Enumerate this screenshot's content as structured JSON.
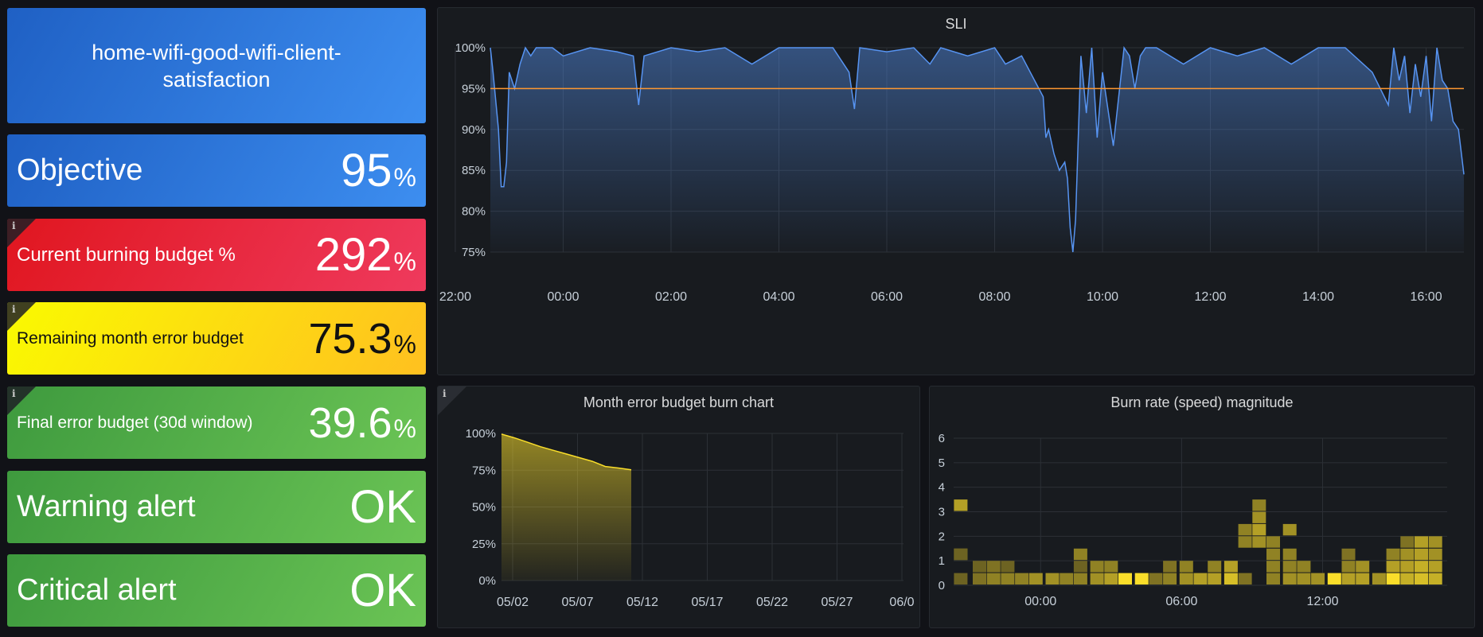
{
  "title_panel": {
    "text": "home-wifi-good-wifi-client-satisfaction"
  },
  "stats": {
    "objective": {
      "label": "Objective",
      "value": "95",
      "unit": "%"
    },
    "burning": {
      "label": "Current burning budget %",
      "value": "292",
      "unit": "%",
      "info": "i"
    },
    "remaining": {
      "label": "Remaining month error budget",
      "value": "75.3",
      "unit": "%",
      "info": "i"
    },
    "final": {
      "label": "Final error budget (30d window)",
      "value": "39.6",
      "unit": "%",
      "info": "i"
    },
    "warning": {
      "label": "Warning alert",
      "value": "OK"
    },
    "critical": {
      "label": "Critical alert",
      "value": "OK"
    }
  },
  "colors": {
    "blue_stat": "#3d8ef0",
    "red_stat": "#e0161f",
    "yellow_stat": "#fafa00",
    "green_stat": "#56a64b",
    "sli_line": "#5794f2",
    "objective_line": "#ff9830",
    "budget_line": "#fade2a",
    "heat_bright": "#fade2a",
    "heat_dim": "#504a22"
  },
  "panel_titles": {
    "sli": "SLI",
    "burn_chart": "Month error budget burn chart",
    "burn_rate": "Burn rate (speed) magnitude"
  },
  "burn_chart_info": "i",
  "chart_data": [
    {
      "type": "line",
      "title": "SLI",
      "x_ticks": [
        "22:00",
        "00:00",
        "02:00",
        "04:00",
        "06:00",
        "08:00",
        "10:00",
        "12:00",
        "14:00",
        "16:00"
      ],
      "y_ticks": [
        "100%",
        "95%",
        "90%",
        "85%",
        "80%",
        "75%"
      ],
      "ylim": [
        75,
        100
      ],
      "threshold": {
        "value": 95
      },
      "series": [
        {
          "x": [
            -1.35,
            -1.3,
            -1.2,
            -1.15,
            -1.1,
            -1.05,
            -1.0,
            -0.9,
            -0.8,
            -0.7,
            -0.6,
            -0.5,
            -0.2,
            0.0,
            0.5,
            1.0,
            1.3,
            1.4,
            1.5,
            2.0,
            2.5,
            3.0,
            3.5,
            4.0,
            5.0,
            5.3,
            5.4,
            5.5,
            6.0,
            6.5,
            6.8,
            7.0,
            7.5,
            8.0,
            8.2,
            8.5,
            8.9,
            8.95,
            9.0,
            9.1,
            9.2,
            9.3,
            9.35,
            9.4,
            9.45,
            9.5,
            9.6,
            9.7,
            9.8,
            9.9,
            10.0,
            10.2,
            10.4,
            10.5,
            10.6,
            10.7,
            10.8,
            11.0,
            11.5,
            12.0,
            12.5,
            13.0,
            13.5,
            14.0,
            14.5,
            15.0,
            15.3,
            15.4,
            15.5,
            15.6,
            15.7,
            15.8,
            15.9,
            16.0,
            16.1,
            16.2,
            16.3,
            16.4,
            16.5,
            16.6,
            16.7
          ],
          "y": [
            100,
            97,
            90,
            83,
            83,
            86,
            97,
            95,
            98,
            100,
            99,
            100,
            100,
            99,
            100,
            99.5,
            99,
            93,
            99,
            100,
            99.5,
            100,
            98,
            100,
            100,
            97,
            92.5,
            100,
            99.5,
            100,
            98,
            100,
            99,
            100,
            98,
            99,
            94,
            89,
            90,
            87,
            85,
            86,
            84,
            78,
            75,
            79,
            99,
            92,
            100,
            89,
            97,
            88,
            100,
            99,
            95,
            99,
            100,
            100,
            98,
            100,
            99,
            100,
            98,
            100,
            100,
            97,
            93,
            100,
            96,
            99,
            92,
            98,
            94,
            99,
            91,
            100,
            96,
            95,
            91,
            90,
            84.5
          ]
        }
      ]
    },
    {
      "type": "area",
      "title": "Month error budget burn chart",
      "x_ticks": [
        "05/02",
        "05/07",
        "05/12",
        "05/17",
        "05/22",
        "05/27",
        "06/0"
      ],
      "y_ticks": [
        "100%",
        "75%",
        "50%",
        "25%",
        "0%"
      ],
      "ylim": [
        0,
        100
      ],
      "series": [
        {
          "x": [
            "05/01",
            "05/02",
            "05/03",
            "05/04",
            "05/05",
            "05/06",
            "05/07",
            "05/08",
            "05/09",
            "05/10",
            "05/11"
          ],
          "y": [
            99.5,
            97,
            94,
            91,
            88.5,
            86,
            83.5,
            81,
            77.5,
            76.5,
            75.3
          ]
        }
      ]
    },
    {
      "type": "heatmap",
      "title": "Burn rate (speed) magnitude",
      "x_ticks": [
        "00:00",
        "06:00",
        "12:00"
      ],
      "y_ticks": [
        "0",
        "1",
        "2",
        "3",
        "4",
        "5",
        "6"
      ],
      "ylim": [
        0,
        6
      ],
      "columns": [
        {
          "x": -3.4,
          "cells": [
            {
              "y": 1,
              "i": 0.5
            },
            {
              "y": 0,
              "i": 0.2
            },
            {
              "y": 1,
              "i": 0.2
            },
            {
              "y": 3,
              "i": 0.6
            }
          ]
        },
        {
          "x": -2.6,
          "cells": [
            {
              "y": 0,
              "i": 0.3
            },
            {
              "y": 0.5,
              "i": 0.2
            }
          ]
        },
        {
          "x": -2.0,
          "cells": [
            {
              "y": 0,
              "i": 0.4
            },
            {
              "y": 0.5,
              "i": 0.3
            }
          ]
        },
        {
          "x": -1.4,
          "cells": [
            {
              "y": 0,
              "i": 0.4
            },
            {
              "y": 0.5,
              "i": 0.2
            }
          ]
        },
        {
          "x": -0.8,
          "cells": [
            {
              "y": 0,
              "i": 0.4
            }
          ]
        },
        {
          "x": -0.2,
          "cells": [
            {
              "y": 0,
              "i": 0.5
            }
          ]
        },
        {
          "x": 0.5,
          "cells": [
            {
              "y": 0,
              "i": 0.5
            }
          ]
        },
        {
          "x": 1.1,
          "cells": [
            {
              "y": 0,
              "i": 0.4
            }
          ]
        },
        {
          "x": 1.7,
          "cells": [
            {
              "y": 0,
              "i": 0.4
            },
            {
              "y": 0.5,
              "i": 0.2
            },
            {
              "y": 1,
              "i": 0.4
            }
          ]
        },
        {
          "x": 2.4,
          "cells": [
            {
              "y": 0,
              "i": 0.5
            },
            {
              "y": 0.5,
              "i": 0.4
            }
          ]
        },
        {
          "x": 3.0,
          "cells": [
            {
              "y": 0,
              "i": 0.6
            },
            {
              "y": 0.5,
              "i": 0.4
            }
          ]
        },
        {
          "x": 3.6,
          "cells": [
            {
              "y": 0,
              "i": 1.0
            }
          ]
        },
        {
          "x": 4.3,
          "cells": [
            {
              "y": 0,
              "i": 1.0
            }
          ]
        },
        {
          "x": 4.9,
          "cells": [
            {
              "y": 0,
              "i": 0.3
            }
          ]
        },
        {
          "x": 5.5,
          "cells": [
            {
              "y": 0,
              "i": 0.4
            },
            {
              "y": 0.5,
              "i": 0.3
            }
          ]
        },
        {
          "x": 6.2,
          "cells": [
            {
              "y": 0,
              "i": 0.5
            },
            {
              "y": 0.5,
              "i": 0.4
            }
          ]
        },
        {
          "x": 6.8,
          "cells": [
            {
              "y": 0,
              "i": 0.6
            }
          ]
        },
        {
          "x": 7.4,
          "cells": [
            {
              "y": 0,
              "i": 0.6
            },
            {
              "y": 0.5,
              "i": 0.4
            }
          ]
        },
        {
          "x": 8.1,
          "cells": [
            {
              "y": 0,
              "i": 0.8
            },
            {
              "y": 0.5,
              "i": 0.6
            }
          ]
        },
        {
          "x": 8.7,
          "cells": [
            {
              "y": 0,
              "i": 0.3
            },
            {
              "y": 1.5,
              "i": 0.4
            },
            {
              "y": 2,
              "i": 0.4
            }
          ]
        },
        {
          "x": 9.3,
          "cells": [
            {
              "y": 1.5,
              "i": 0.5
            },
            {
              "y": 2,
              "i": 0.6
            },
            {
              "y": 2.5,
              "i": 0.5
            },
            {
              "y": 3,
              "i": 0.4
            }
          ]
        },
        {
          "x": 9.9,
          "cells": [
            {
              "y": 0,
              "i": 0.4
            },
            {
              "y": 0.5,
              "i": 0.4
            },
            {
              "y": 1,
              "i": 0.4
            },
            {
              "y": 1.5,
              "i": 0.4
            }
          ]
        },
        {
          "x": 10.6,
          "cells": [
            {
              "y": 0,
              "i": 0.5
            },
            {
              "y": 0.5,
              "i": 0.4
            },
            {
              "y": 1,
              "i": 0.4
            },
            {
              "y": 2,
              "i": 0.5
            }
          ]
        },
        {
          "x": 11.2,
          "cells": [
            {
              "y": 0,
              "i": 0.5
            },
            {
              "y": 0.5,
              "i": 0.4
            }
          ]
        },
        {
          "x": 11.8,
          "cells": [
            {
              "y": 0,
              "i": 0.5
            }
          ]
        },
        {
          "x": 12.5,
          "cells": [
            {
              "y": 0,
              "i": 1.0
            }
          ]
        },
        {
          "x": 13.1,
          "cells": [
            {
              "y": 0,
              "i": 0.6
            },
            {
              "y": 0.5,
              "i": 0.4
            },
            {
              "y": 1,
              "i": 0.3
            }
          ]
        },
        {
          "x": 13.7,
          "cells": [
            {
              "y": 0,
              "i": 0.6
            },
            {
              "y": 0.5,
              "i": 0.5
            }
          ]
        },
        {
          "x": 14.4,
          "cells": [
            {
              "y": 0,
              "i": 0.5
            }
          ]
        },
        {
          "x": 15.0,
          "cells": [
            {
              "y": 0,
              "i": 1.0
            },
            {
              "y": 0.5,
              "i": 0.6
            },
            {
              "y": 1,
              "i": 0.4
            }
          ]
        },
        {
          "x": 15.6,
          "cells": [
            {
              "y": 0,
              "i": 0.7
            },
            {
              "y": 0.5,
              "i": 0.6
            },
            {
              "y": 1,
              "i": 0.5
            },
            {
              "y": 1.5,
              "i": 0.3
            }
          ]
        },
        {
          "x": 16.2,
          "cells": [
            {
              "y": 0,
              "i": 0.8
            },
            {
              "y": 0.5,
              "i": 0.7
            },
            {
              "y": 1,
              "i": 0.6
            },
            {
              "y": 1.5,
              "i": 0.6
            }
          ]
        },
        {
          "x": 16.8,
          "cells": [
            {
              "y": 0,
              "i": 0.7
            },
            {
              "y": 0.5,
              "i": 0.6
            },
            {
              "y": 1,
              "i": 0.5
            },
            {
              "y": 1.5,
              "i": 0.5
            }
          ]
        }
      ]
    }
  ]
}
